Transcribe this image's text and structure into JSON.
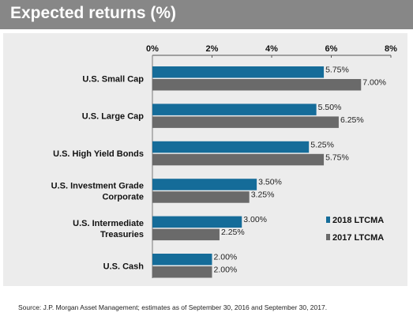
{
  "header": {
    "title": "Expected returns (%)"
  },
  "source": "Source: J.P. Morgan Asset Management; estimates as of  September 30, 2016 and September 30, 2017.",
  "colors": {
    "series_2018": "#156c99",
    "series_2017": "#6a6a6a",
    "panel": "#ececec",
    "header": "#878787"
  },
  "chart_data": {
    "type": "bar",
    "orientation": "horizontal",
    "title": "Expected returns (%)",
    "categories": [
      [
        "U.S. Small Cap"
      ],
      [
        "U.S. Large Cap"
      ],
      [
        "U.S. High Yield Bonds"
      ],
      [
        "U.S. Investment Grade",
        "Corporate"
      ],
      [
        "U.S. Intermediate",
        "Treasuries"
      ],
      [
        "U.S. Cash"
      ]
    ],
    "series": [
      {
        "name": "2018 LTCMA",
        "values": [
          5.75,
          5.5,
          5.25,
          3.5,
          3.0,
          2.0
        ],
        "labels": [
          "5.75%",
          "5.50%",
          "5.25%",
          "3.50%",
          "3.00%",
          "2.00%"
        ]
      },
      {
        "name": "2017 LTCMA",
        "values": [
          7.0,
          6.25,
          5.75,
          3.25,
          2.25,
          2.0
        ],
        "labels": [
          "7.00%",
          "6.25%",
          "5.75%",
          "3.25%",
          "2.25%",
          "2.00%"
        ]
      }
    ],
    "xlim": [
      0,
      8
    ],
    "x_ticks": [
      "0%",
      "2%",
      "4%",
      "6%",
      "8%"
    ],
    "x_axis_position": "top",
    "grid": false,
    "legend_position": "right"
  }
}
